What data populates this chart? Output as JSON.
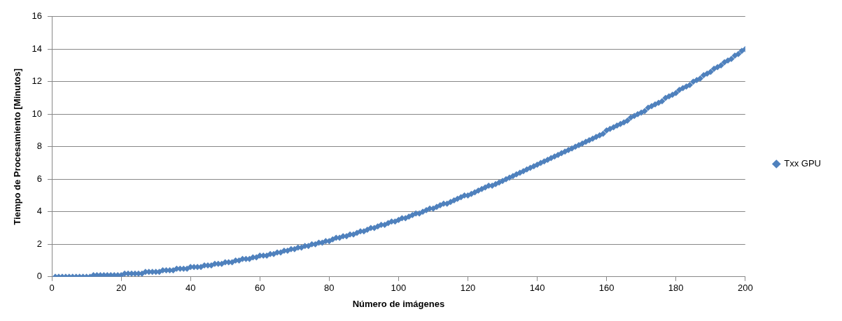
{
  "chart_data": {
    "type": "scatter",
    "xlabel": "Número de imágenes",
    "ylabel": "Tiempo de Procesamiento [Minutos]",
    "x": [
      1,
      2,
      3,
      4,
      5,
      6,
      7,
      8,
      9,
      10,
      11,
      12,
      13,
      14,
      15,
      16,
      17,
      18,
      19,
      20,
      21,
      22,
      23,
      24,
      25,
      26,
      27,
      28,
      29,
      30,
      31,
      32,
      33,
      34,
      35,
      36,
      37,
      38,
      39,
      40,
      41,
      42,
      43,
      44,
      45,
      46,
      47,
      48,
      49,
      50,
      51,
      52,
      53,
      54,
      55,
      56,
      57,
      58,
      59,
      60,
      61,
      62,
      63,
      64,
      65,
      66,
      67,
      68,
      69,
      70,
      71,
      72,
      73,
      74,
      75,
      76,
      77,
      78,
      79,
      80,
      81,
      82,
      83,
      84,
      85,
      86,
      87,
      88,
      89,
      90,
      91,
      92,
      93,
      94,
      95,
      96,
      97,
      98,
      99,
      100,
      101,
      102,
      103,
      104,
      105,
      106,
      107,
      108,
      109,
      110,
      111,
      112,
      113,
      114,
      115,
      116,
      117,
      118,
      119,
      120,
      121,
      122,
      123,
      124,
      125,
      126,
      127,
      128,
      129,
      130,
      131,
      132,
      133,
      134,
      135,
      136,
      137,
      138,
      139,
      140,
      141,
      142,
      143,
      144,
      145,
      146,
      147,
      148,
      149,
      150,
      151,
      152,
      153,
      154,
      155,
      156,
      157,
      158,
      159,
      160,
      161,
      162,
      163,
      164,
      165,
      166,
      167,
      168,
      169,
      170,
      171,
      172,
      173,
      174,
      175,
      176,
      177,
      178,
      179,
      180,
      181,
      182,
      183,
      184,
      185,
      186,
      187,
      188,
      189,
      190,
      191,
      192,
      193,
      194,
      195,
      196,
      197,
      198,
      199,
      200
    ],
    "series": [
      {
        "name": "Txx GPU",
        "color": "#4f81bd",
        "values": [
          0,
          0,
          0,
          0,
          0,
          0,
          0,
          0,
          0,
          0,
          0,
          0.1,
          0.1,
          0.1,
          0.1,
          0.1,
          0.1,
          0.1,
          0.1,
          0.1,
          0.2,
          0.2,
          0.2,
          0.2,
          0.2,
          0.2,
          0.3,
          0.3,
          0.3,
          0.3,
          0.3,
          0.4,
          0.4,
          0.4,
          0.4,
          0.5,
          0.5,
          0.5,
          0.5,
          0.6,
          0.6,
          0.6,
          0.6,
          0.7,
          0.7,
          0.7,
          0.8,
          0.8,
          0.8,
          0.9,
          0.9,
          0.9,
          1.0,
          1.0,
          1.1,
          1.1,
          1.1,
          1.2,
          1.2,
          1.3,
          1.3,
          1.3,
          1.4,
          1.4,
          1.5,
          1.5,
          1.6,
          1.6,
          1.7,
          1.7,
          1.8,
          1.8,
          1.9,
          1.9,
          2.0,
          2.0,
          2.1,
          2.1,
          2.2,
          2.2,
          2.3,
          2.4,
          2.4,
          2.5,
          2.5,
          2.6,
          2.6,
          2.7,
          2.8,
          2.8,
          2.9,
          3.0,
          3.0,
          3.1,
          3.2,
          3.2,
          3.3,
          3.4,
          3.4,
          3.5,
          3.6,
          3.6,
          3.7,
          3.8,
          3.9,
          3.9,
          4.0,
          4.1,
          4.2,
          4.2,
          4.3,
          4.4,
          4.5,
          4.5,
          4.6,
          4.7,
          4.8,
          4.9,
          5.0,
          5.0,
          5.1,
          5.2,
          5.3,
          5.4,
          5.5,
          5.6,
          5.6,
          5.7,
          5.8,
          5.9,
          6.0,
          6.1,
          6.2,
          6.3,
          6.4,
          6.5,
          6.6,
          6.7,
          6.8,
          6.9,
          7.0,
          7.1,
          7.2,
          7.3,
          7.4,
          7.5,
          7.6,
          7.7,
          7.8,
          7.9,
          8.0,
          8.1,
          8.2,
          8.3,
          8.4,
          8.5,
          8.6,
          8.7,
          8.8,
          9.0,
          9.1,
          9.2,
          9.3,
          9.4,
          9.5,
          9.6,
          9.8,
          9.9,
          10.0,
          10.1,
          10.2,
          10.4,
          10.5,
          10.6,
          10.7,
          10.8,
          11.0,
          11.1,
          11.2,
          11.3,
          11.5,
          11.6,
          11.7,
          11.8,
          12.0,
          12.1,
          12.2,
          12.4,
          12.5,
          12.6,
          12.8,
          12.9,
          13.0,
          13.2,
          13.3,
          13.4,
          13.6,
          13.7,
          13.9,
          14.0
        ]
      }
    ],
    "xlim": [
      0,
      200
    ],
    "xticks": [
      0,
      20,
      40,
      60,
      80,
      100,
      120,
      140,
      160,
      180,
      200
    ],
    "ylim": [
      0,
      16
    ],
    "yticks": [
      0,
      2,
      4,
      6,
      8,
      10,
      12,
      14,
      16
    ],
    "grid": "y",
    "legend": "right",
    "marker": "diamond"
  }
}
